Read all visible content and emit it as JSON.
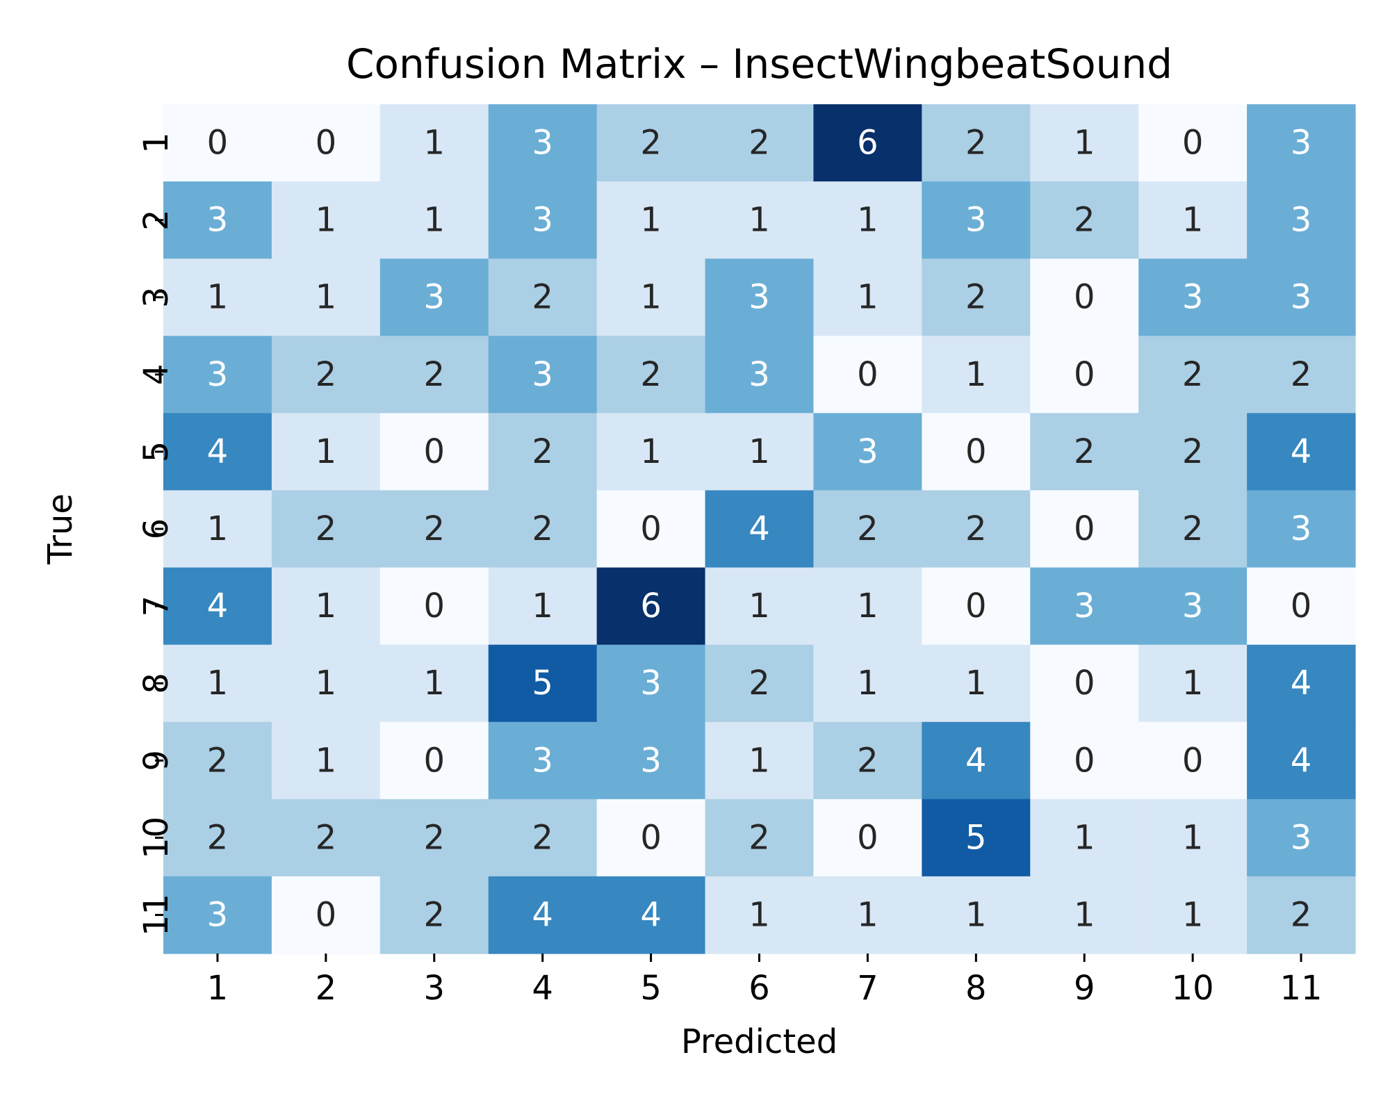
{
  "chart_data": {
    "type": "heatmap",
    "title": "Confusion Matrix – InsectWingbeatSound",
    "xlabel": "Predicted",
    "ylabel": "True",
    "x_categories": [
      "1",
      "2",
      "3",
      "4",
      "5",
      "6",
      "7",
      "8",
      "9",
      "10",
      "11"
    ],
    "y_categories": [
      "1",
      "2",
      "3",
      "4",
      "5",
      "6",
      "7",
      "8",
      "9",
      "10",
      "11"
    ],
    "values": [
      [
        0,
        0,
        1,
        3,
        2,
        2,
        6,
        2,
        1,
        0,
        3
      ],
      [
        3,
        1,
        1,
        3,
        1,
        1,
        1,
        3,
        2,
        1,
        3
      ],
      [
        1,
        1,
        3,
        2,
        1,
        3,
        1,
        2,
        0,
        3,
        3
      ],
      [
        3,
        2,
        2,
        3,
        2,
        3,
        0,
        1,
        0,
        2,
        2
      ],
      [
        4,
        1,
        0,
        2,
        1,
        1,
        3,
        0,
        2,
        2,
        4
      ],
      [
        1,
        2,
        2,
        2,
        0,
        4,
        2,
        2,
        0,
        2,
        3
      ],
      [
        4,
        1,
        0,
        1,
        6,
        1,
        1,
        0,
        3,
        3,
        0
      ],
      [
        1,
        1,
        1,
        5,
        3,
        2,
        1,
        1,
        0,
        1,
        4
      ],
      [
        2,
        1,
        0,
        3,
        3,
        1,
        2,
        4,
        0,
        0,
        4
      ],
      [
        2,
        2,
        2,
        2,
        0,
        2,
        0,
        5,
        1,
        1,
        3
      ],
      [
        3,
        0,
        2,
        4,
        4,
        1,
        1,
        1,
        1,
        1,
        2
      ]
    ],
    "colormap": "Blues",
    "value_range": [
      0,
      6
    ],
    "colors": {
      "0": "#f7fbff",
      "1": "#d8e7f5",
      "2": "#abcfe5",
      "3": "#6aaed6",
      "4": "#3787c0",
      "5": "#105ba4",
      "6": "#08306b"
    },
    "annotation_colors": {
      "light": "#ffffff",
      "dark": "#262626"
    },
    "colorbar": false
  }
}
